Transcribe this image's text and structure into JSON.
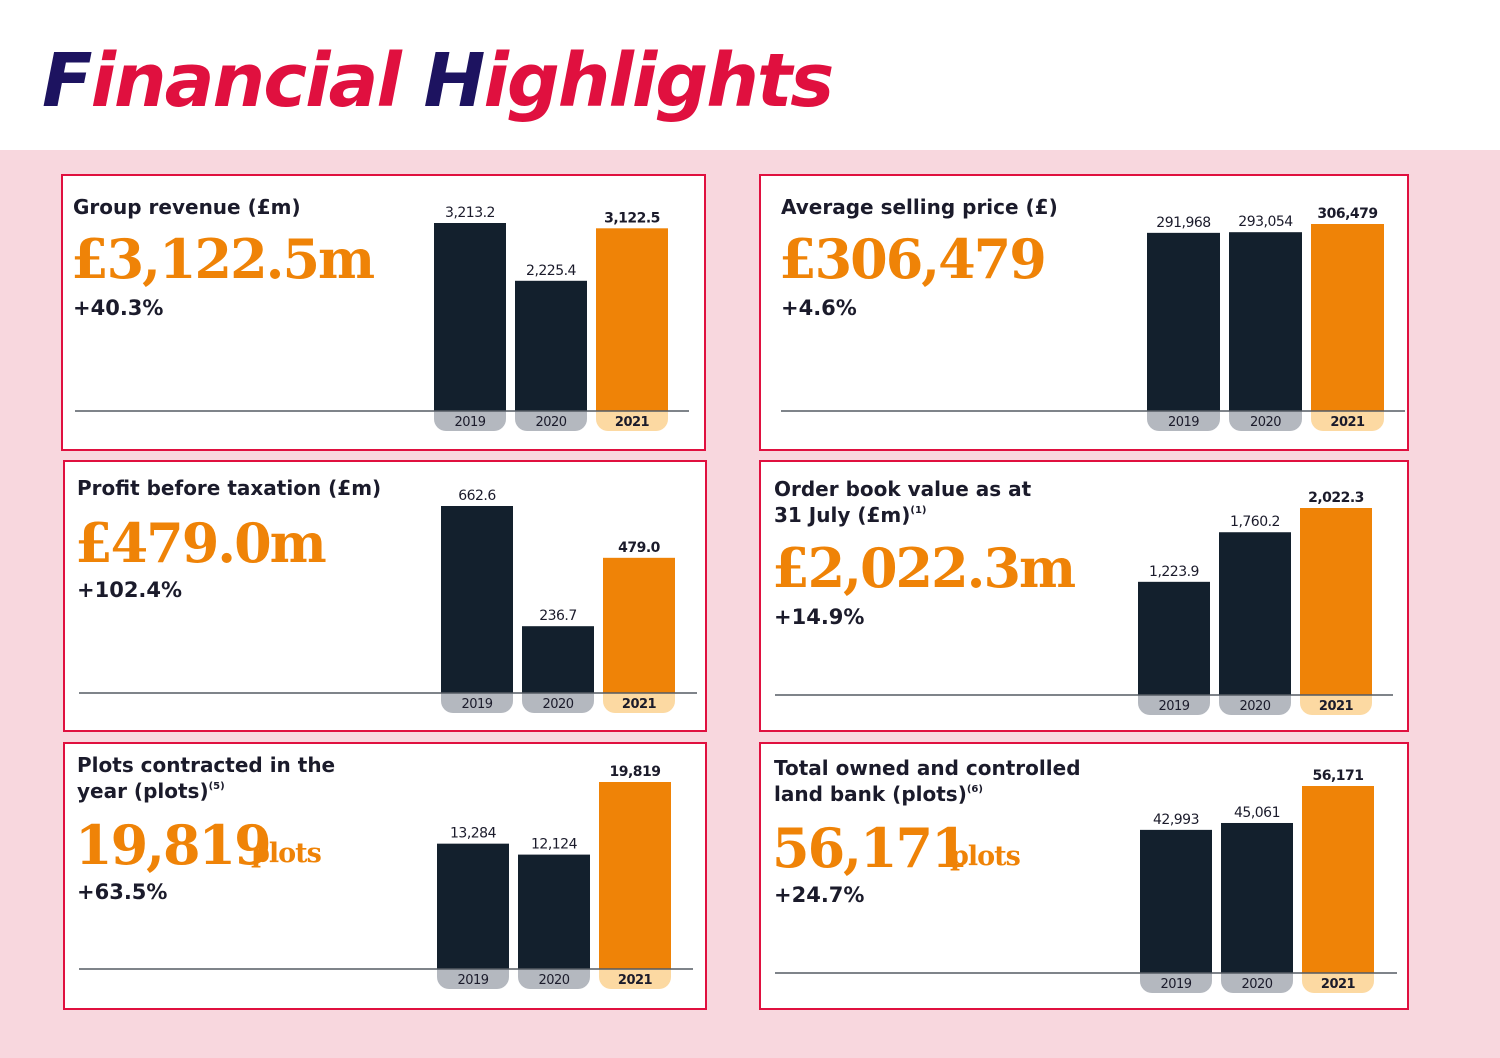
{
  "page": {
    "title_parts": [
      "F",
      "inancial ",
      "H",
      "ighlights"
    ]
  },
  "colors": {
    "title_red": "#e0103f",
    "title_navy": "#1d1360",
    "panel_pink": "#f8d7de",
    "card_border": "#e0103f",
    "bar_dark": "#13202d",
    "bar_highlight": "#ef8307",
    "tab_dark": "#b4b8bf",
    "tab_highlight": "#fcd9a2",
    "text_dark": "#1b1b2b"
  },
  "cards": [
    {
      "title_lines": [
        "Group revenue (£m)"
      ],
      "title_note": "",
      "value": "£3,122.5m",
      "unit": "",
      "change": "+40.3%"
    },
    {
      "title_lines": [
        "Average selling price (£)"
      ],
      "title_note": "",
      "value": "£306,479",
      "unit": "",
      "change": "+4.6%"
    },
    {
      "title_lines": [
        "Profit before taxation (£m)"
      ],
      "title_note": "",
      "value": "£479.0m",
      "unit": "",
      "change": "+102.4%"
    },
    {
      "title_lines": [
        "Order book value as at",
        "31 July (£m)"
      ],
      "title_note": "(1)",
      "value": "£2,022.3m",
      "unit": "",
      "change": "+14.9%"
    },
    {
      "title_lines": [
        "Plots contracted in the",
        "year (plots)"
      ],
      "title_note": "(5)",
      "value": "19,819",
      "unit": "plots",
      "change": "+63.5%"
    },
    {
      "title_lines": [
        "Total owned and controlled",
        "land bank (plots)"
      ],
      "title_note": "(6)",
      "value": "56,171",
      "unit": "plots",
      "change": "+24.7%"
    }
  ],
  "chart_data": [
    {
      "type": "bar",
      "title": "Group revenue (£m)",
      "categories": [
        "2019",
        "2020",
        "2021"
      ],
      "values": [
        3213.2,
        2225.4,
        3122.5
      ],
      "value_labels": [
        "3,213.2",
        "2,225.4",
        "3,122.5"
      ],
      "highlight_index": 2,
      "ylim": [
        0,
        3213.2
      ]
    },
    {
      "type": "bar",
      "title": "Average selling price (£)",
      "categories": [
        "2019",
        "2020",
        "2021"
      ],
      "values": [
        291968,
        293054,
        306479
      ],
      "value_labels": [
        "291,968",
        "293,054",
        "306,479"
      ],
      "highlight_index": 2,
      "ylim": [
        0,
        306479
      ]
    },
    {
      "type": "bar",
      "title": "Profit before taxation (£m)",
      "categories": [
        "2019",
        "2020",
        "2021"
      ],
      "values": [
        662.6,
        236.7,
        479.0
      ],
      "value_labels": [
        "662.6",
        "236.7",
        "479.0"
      ],
      "highlight_index": 2,
      "ylim": [
        0,
        662.6
      ]
    },
    {
      "type": "bar",
      "title": "Order book value as at 31 July (£m)",
      "categories": [
        "2019",
        "2020",
        "2021"
      ],
      "values": [
        1223.9,
        1760.2,
        2022.3
      ],
      "value_labels": [
        "1,223.9",
        "1,760.2",
        "2,022.3"
      ],
      "highlight_index": 2,
      "ylim": [
        0,
        2022.3
      ]
    },
    {
      "type": "bar",
      "title": "Plots contracted in the year (plots)",
      "categories": [
        "2019",
        "2020",
        "2021"
      ],
      "values": [
        13284,
        12124,
        19819
      ],
      "value_labels": [
        "13,284",
        "12,124",
        "19,819"
      ],
      "highlight_index": 2,
      "ylim": [
        0,
        19819
      ]
    },
    {
      "type": "bar",
      "title": "Total owned and controlled land bank (plots)",
      "categories": [
        "2019",
        "2020",
        "2021"
      ],
      "values": [
        42993,
        45061,
        56171
      ],
      "value_labels": [
        "42,993",
        "45,061",
        "56,171"
      ],
      "highlight_index": 2,
      "ylim": [
        0,
        56171
      ]
    }
  ]
}
